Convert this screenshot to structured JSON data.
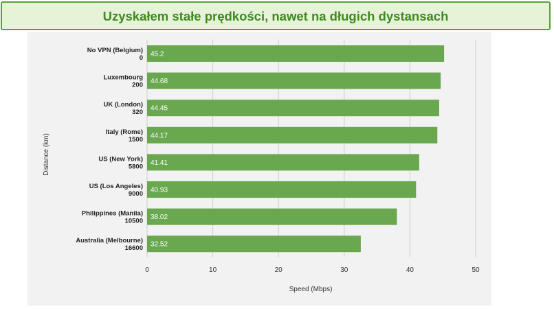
{
  "banner": {
    "title": "Uzyskałem stałe prędkości, nawet na długich dystansach"
  },
  "colors": {
    "bar": "#6aa84f",
    "banner_bg": "#e6f3d9",
    "banner_border": "#5a9e3a",
    "banner_text": "#3f8a1f",
    "panel_bg": "#f2f2f2",
    "grid": "#cccccc"
  },
  "chart_data": {
    "type": "bar",
    "orientation": "horizontal",
    "title": "",
    "xlabel": "Speed (Mbps)",
    "ylabel": "Distance (km)",
    "xlim": [
      0,
      50
    ],
    "xticks": [
      0,
      10,
      20,
      30,
      40,
      50
    ],
    "grid": true,
    "categories": [
      {
        "name": "No VPN (Belgium)",
        "distance": "0"
      },
      {
        "name": "Luxembourg",
        "distance": "200"
      },
      {
        "name": "UK (London)",
        "distance": "320"
      },
      {
        "name": "Italy (Rome)",
        "distance": "1500"
      },
      {
        "name": "US (New York)",
        "distance": "5800"
      },
      {
        "name": "US (Los Angeles)",
        "distance": "9000"
      },
      {
        "name": "Philippines (Manila)",
        "distance": "10500"
      },
      {
        "name": "Australia (Melbourne)",
        "distance": "16600"
      }
    ],
    "values": [
      45.2,
      44.68,
      44.45,
      44.17,
      41.41,
      40.93,
      38.02,
      32.52
    ],
    "value_labels": [
      "45.2",
      "44.68",
      "44.45",
      "44.17",
      "41.41",
      "40.93",
      "38.02",
      "32.52"
    ]
  }
}
